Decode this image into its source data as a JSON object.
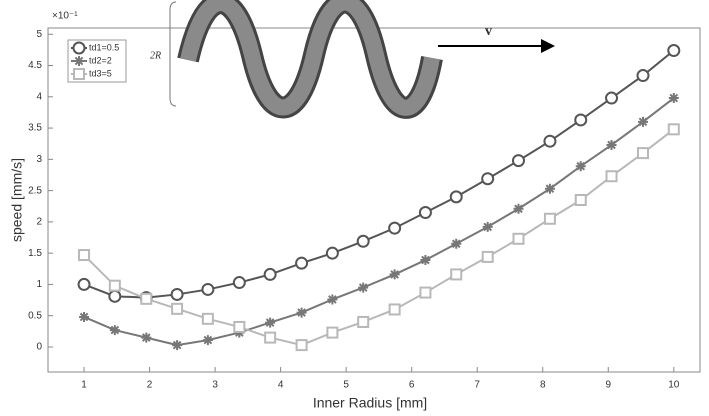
{
  "chart_data": {
    "type": "line",
    "xlabel": "Inner Radius [mm]",
    "ylabel": "speed [mm/s]",
    "multiplier": "×10⁻¹",
    "annotations": {
      "radius": "2R",
      "velocity": "v"
    },
    "x": [
      1,
      1.47,
      1.95,
      2.42,
      2.89,
      3.37,
      3.84,
      4.32,
      4.79,
      5.26,
      5.74,
      6.21,
      6.68,
      7.16,
      7.63,
      8.11,
      8.58,
      9.05,
      9.53,
      10
    ],
    "series": [
      {
        "name": "td1=0.5",
        "color": "#555555",
        "marker": "circle",
        "values": [
          1.0,
          0.81,
          0.79,
          0.84,
          0.92,
          1.03,
          1.16,
          1.34,
          1.5,
          1.69,
          1.9,
          2.15,
          2.4,
          2.69,
          2.98,
          3.29,
          3.63,
          3.98,
          4.34,
          4.74
        ]
      },
      {
        "name": "td2=2",
        "color": "#777777",
        "marker": "asterisk",
        "values": [
          0.48,
          0.27,
          0.15,
          0.03,
          0.11,
          0.23,
          0.39,
          0.55,
          0.76,
          0.95,
          1.16,
          1.39,
          1.65,
          1.92,
          2.21,
          2.53,
          2.89,
          3.23,
          3.6,
          3.98
        ]
      },
      {
        "name": "td3=5",
        "color": "#b8b8b8",
        "marker": "square",
        "values": [
          1.47,
          0.98,
          0.77,
          0.61,
          0.45,
          0.32,
          0.15,
          0.03,
          0.23,
          0.4,
          0.6,
          0.87,
          1.16,
          1.44,
          1.73,
          2.05,
          2.35,
          2.73,
          3.1,
          3.48
        ]
      }
    ],
    "xlim": [
      0.45,
      10.4
    ],
    "ylim": [
      -0.4,
      5.1
    ],
    "xticks": [
      1,
      2,
      3,
      4,
      5,
      6,
      7,
      8,
      9,
      10
    ],
    "yticks": [
      0,
      0.5,
      1,
      1.5,
      2,
      2.5,
      3,
      3.5,
      4,
      4.5,
      5
    ],
    "grid": false,
    "legend": "upper left"
  }
}
